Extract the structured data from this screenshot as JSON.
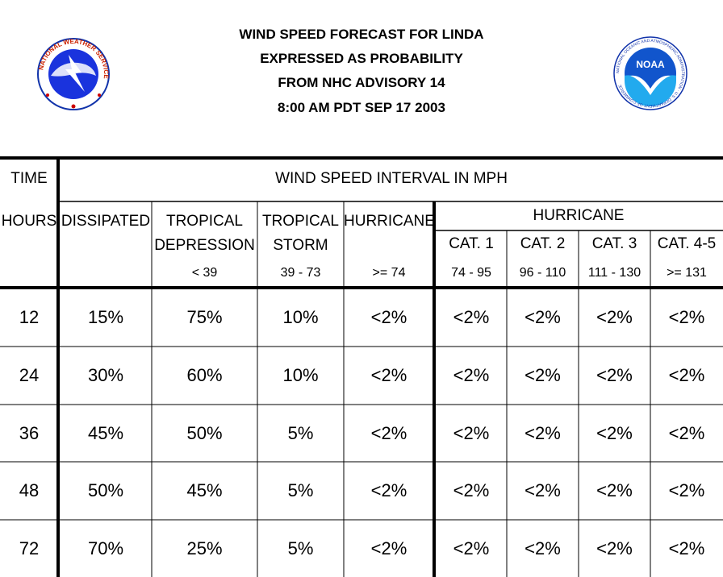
{
  "header": {
    "title_lines": [
      "WIND SPEED FORECAST FOR LINDA",
      "EXPRESSED AS PROBABILITY",
      "FROM NHC ADVISORY   14",
      "8:00 AM PDT SEP 17 2003"
    ],
    "left_logo": {
      "icon": "national-weather-service-logo",
      "ring_text": "NATIONAL WEATHER SERVICE"
    },
    "right_logo": {
      "icon": "noaa-logo",
      "center_text": "NOAA",
      "ring_text": "NATIONAL OCEANIC AND ATMOSPHERIC ADMINISTRATION · U.S. DEPARTMENT OF COMMERCE"
    }
  },
  "table": {
    "time_label": "TIME",
    "interval_label": "WIND SPEED INTERVAL IN MPH",
    "hours_label": "HOURS",
    "hurricane_group_label": "HURRICANE",
    "columns": [
      {
        "line1": "DISSIPATED",
        "line2": "",
        "range": ""
      },
      {
        "line1": "TROPICAL",
        "line2": "DEPRESSION",
        "range": "< 39"
      },
      {
        "line1": "TROPICAL",
        "line2": "STORM",
        "range": "39 - 73"
      },
      {
        "line1": "HURRICANE",
        "line2": "",
        "range": ">= 74"
      },
      {
        "line1": "CAT. 1",
        "line2": "",
        "range": "74 - 95"
      },
      {
        "line1": "CAT. 2",
        "line2": "",
        "range": "96 - 110"
      },
      {
        "line1": "CAT. 3",
        "line2": "",
        "range": "111 - 130"
      },
      {
        "line1": "CAT. 4-5",
        "line2": "",
        "range": ">= 131"
      }
    ],
    "rows": [
      {
        "hours": "12",
        "values": [
          "15%",
          "75%",
          "10%",
          "<2%",
          "<2%",
          "<2%",
          "<2%",
          "<2%"
        ]
      },
      {
        "hours": "24",
        "values": [
          "30%",
          "60%",
          "10%",
          "<2%",
          "<2%",
          "<2%",
          "<2%",
          "<2%"
        ]
      },
      {
        "hours": "36",
        "values": [
          "45%",
          "50%",
          "5%",
          "<2%",
          "<2%",
          "<2%",
          "<2%",
          "<2%"
        ]
      },
      {
        "hours": "48",
        "values": [
          "50%",
          "45%",
          "5%",
          "<2%",
          "<2%",
          "<2%",
          "<2%",
          "<2%"
        ]
      },
      {
        "hours": "72",
        "values": [
          "70%",
          "25%",
          "5%",
          "<2%",
          "<2%",
          "<2%",
          "<2%",
          "<2%"
        ]
      }
    ]
  }
}
